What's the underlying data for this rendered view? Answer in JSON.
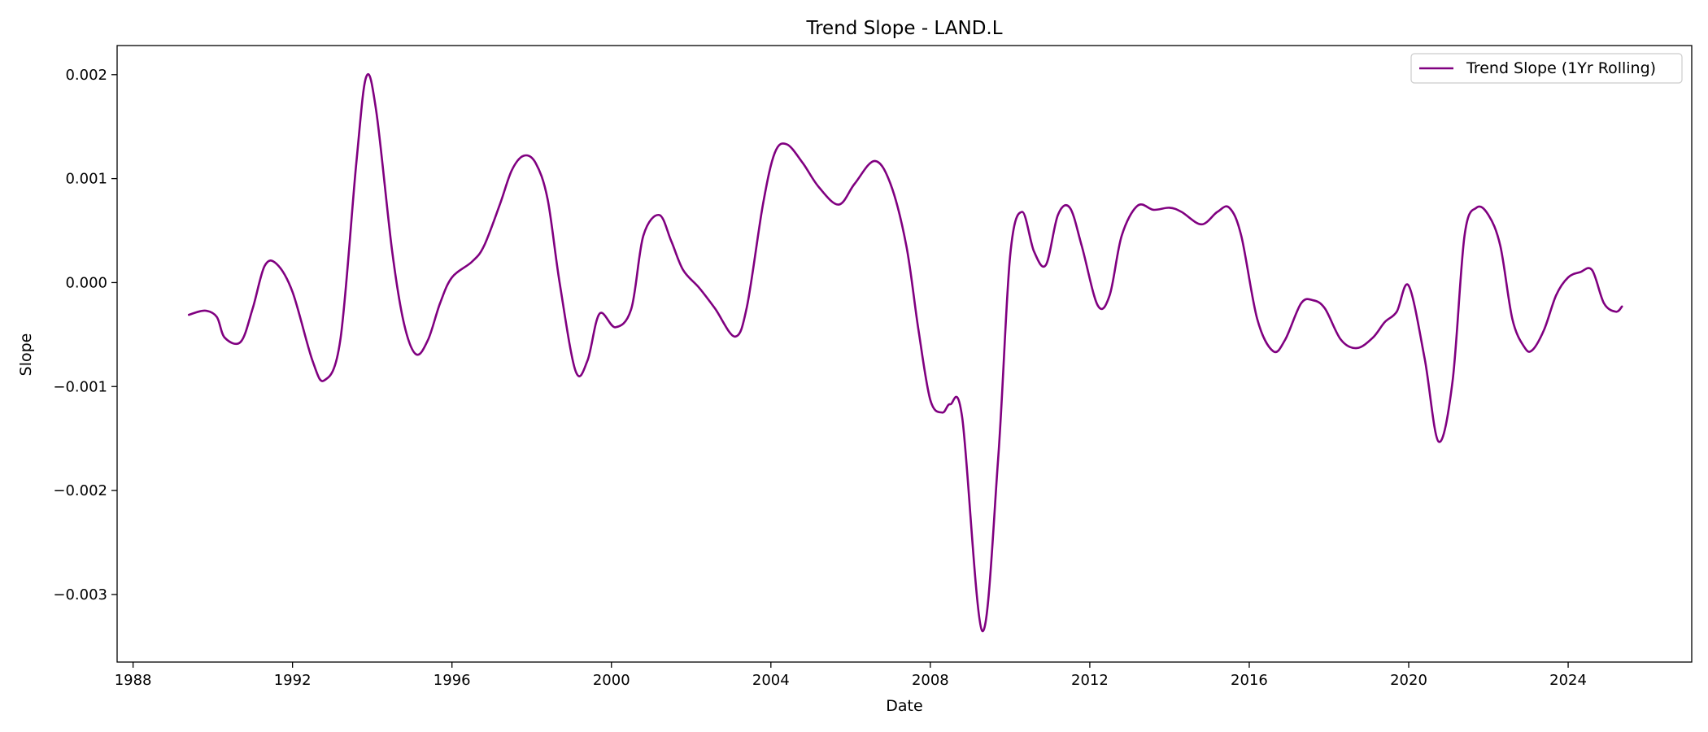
{
  "chart_data": {
    "type": "line",
    "title": "Trend Slope - LAND.L",
    "xlabel": "Date",
    "ylabel": "Slope",
    "xlim": [
      1987.6,
      2027.1
    ],
    "ylim": [
      -0.00365,
      0.00228
    ],
    "x_ticks": [
      1988,
      1992,
      1996,
      2000,
      2004,
      2008,
      2012,
      2016,
      2020,
      2024
    ],
    "y_ticks": [
      0.002,
      0.001,
      0.0,
      -0.001,
      -0.002,
      -0.003
    ],
    "y_tick_labels": [
      "0.002",
      "0.001",
      "0.000",
      "−0.001",
      "−0.002",
      "−0.003"
    ],
    "grid": false,
    "legend_position": "upper right",
    "series": [
      {
        "name": "Trend Slope (1Yr Rolling)",
        "color": "#800080",
        "x": [
          1989.4,
          1989.8,
          1990.1,
          1990.3,
          1990.7,
          1991.0,
          1991.3,
          1991.6,
          1992.0,
          1992.5,
          1992.8,
          1993.2,
          1993.6,
          1993.85,
          1994.1,
          1994.5,
          1994.8,
          1995.1,
          1995.4,
          1995.7,
          1996.0,
          1996.5,
          1996.8,
          1997.2,
          1997.5,
          1997.8,
          1998.1,
          1998.4,
          1998.7,
          1999.1,
          1999.4,
          1999.7,
          2000.1,
          2000.5,
          2000.8,
          2001.2,
          2001.5,
          2001.8,
          2002.2,
          2002.6,
          2003.1,
          2003.4,
          2003.8,
          2004.1,
          2004.4,
          2004.8,
          2005.2,
          2005.7,
          2006.1,
          2006.6,
          2007.0,
          2007.4,
          2007.7,
          2008.0,
          2008.3,
          2008.5,
          2008.8,
          2009.3,
          2009.7,
          2010.0,
          2010.3,
          2010.6,
          2010.9,
          2011.2,
          2011.5,
          2011.8,
          2012.2,
          2012.5,
          2012.8,
          2013.2,
          2013.6,
          2014.0,
          2014.3,
          2014.8,
          2015.2,
          2015.5,
          2015.8,
          2016.2,
          2016.6,
          2016.9,
          2017.3,
          2017.6,
          2017.9,
          2018.3,
          2018.7,
          2019.1,
          2019.4,
          2019.7,
          2020.0,
          2020.4,
          2020.75,
          2021.1,
          2021.4,
          2021.7,
          2022.0,
          2022.3,
          2022.6,
          2022.9,
          2023.1,
          2023.4,
          2023.7,
          2024.0,
          2024.3,
          2024.6,
          2024.9,
          2025.2,
          2025.35
        ],
        "y": [
          -0.00031,
          -0.00027,
          -0.00033,
          -0.00053,
          -0.00057,
          -0.00025,
          0.00016,
          0.00018,
          -9e-05,
          -0.00075,
          -0.00094,
          -0.00055,
          0.00115,
          0.00198,
          0.00165,
          0.0003,
          -0.0004,
          -0.00069,
          -0.00055,
          -0.0002,
          5e-05,
          0.0002,
          0.00035,
          0.00075,
          0.00108,
          0.00122,
          0.00115,
          0.0008,
          0.0,
          -0.00085,
          -0.00075,
          -0.0003,
          -0.00043,
          -0.00025,
          0.00045,
          0.00065,
          0.0004,
          0.00012,
          -5e-05,
          -0.00025,
          -0.00052,
          -0.00023,
          0.00075,
          0.00125,
          0.00133,
          0.00115,
          0.00092,
          0.00075,
          0.00095,
          0.00117,
          0.00095,
          0.00035,
          -0.00045,
          -0.00113,
          -0.00125,
          -0.00117,
          -0.0013,
          -0.00335,
          -0.0017,
          0.00025,
          0.00068,
          0.0003,
          0.00017,
          0.00065,
          0.00072,
          0.00035,
          -0.00022,
          -0.00012,
          0.00045,
          0.00074,
          0.0007,
          0.00072,
          0.00068,
          0.00056,
          0.00068,
          0.00072,
          0.00045,
          -0.00035,
          -0.00066,
          -0.00055,
          -0.0002,
          -0.00017,
          -0.00025,
          -0.00055,
          -0.00063,
          -0.00053,
          -0.00038,
          -0.00028,
          -3e-05,
          -0.00073,
          -0.00153,
          -0.00095,
          0.00045,
          0.00072,
          0.00065,
          0.00035,
          -0.00035,
          -0.00062,
          -0.00065,
          -0.00045,
          -0.00012,
          5e-05,
          0.0001,
          0.00012,
          -0.0002,
          -0.00028,
          -0.00023
        ]
      }
    ]
  }
}
